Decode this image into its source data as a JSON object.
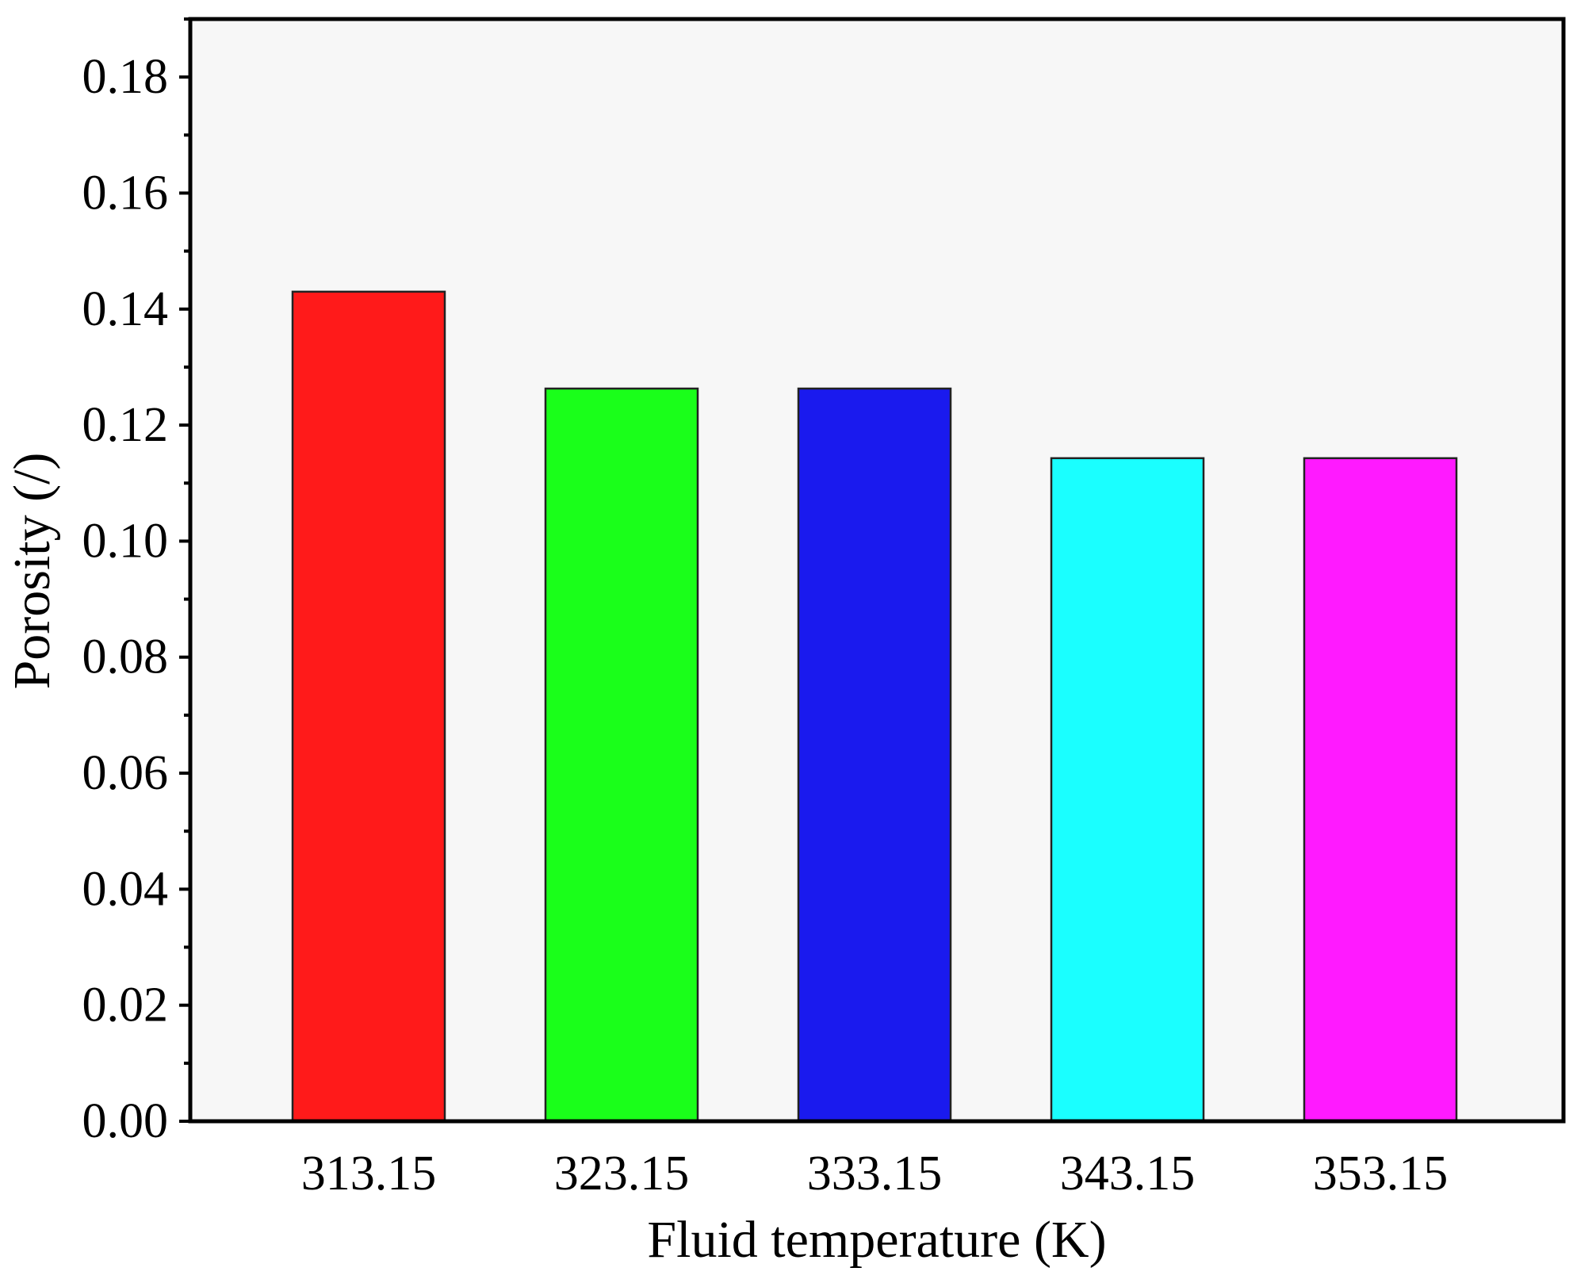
{
  "chart_data": {
    "type": "bar",
    "xlabel": "Fluid temperature (K)",
    "ylabel": "Porosity (/)",
    "categories": [
      "313.15",
      "323.15",
      "333.15",
      "343.15",
      "353.15"
    ],
    "values": [
      0.143,
      0.1263,
      0.1263,
      0.1143,
      0.1143
    ],
    "bar_colors": [
      "#ff1a1a",
      "#1aff1a",
      "#1a1aee",
      "#1affff",
      "#ff1aff"
    ],
    "ylim": [
      0,
      0.19
    ],
    "yticks": [
      0.0,
      0.02,
      0.04,
      0.06,
      0.08,
      0.1,
      0.12,
      0.14,
      0.16,
      0.18
    ],
    "ytick_labels": [
      "0.00",
      "0.02",
      "0.04",
      "0.06",
      "0.08",
      "0.10",
      "0.12",
      "0.14",
      "0.16",
      "0.18"
    ],
    "grid": false,
    "legend": "none",
    "background": "#f7f7f7",
    "title": ""
  }
}
